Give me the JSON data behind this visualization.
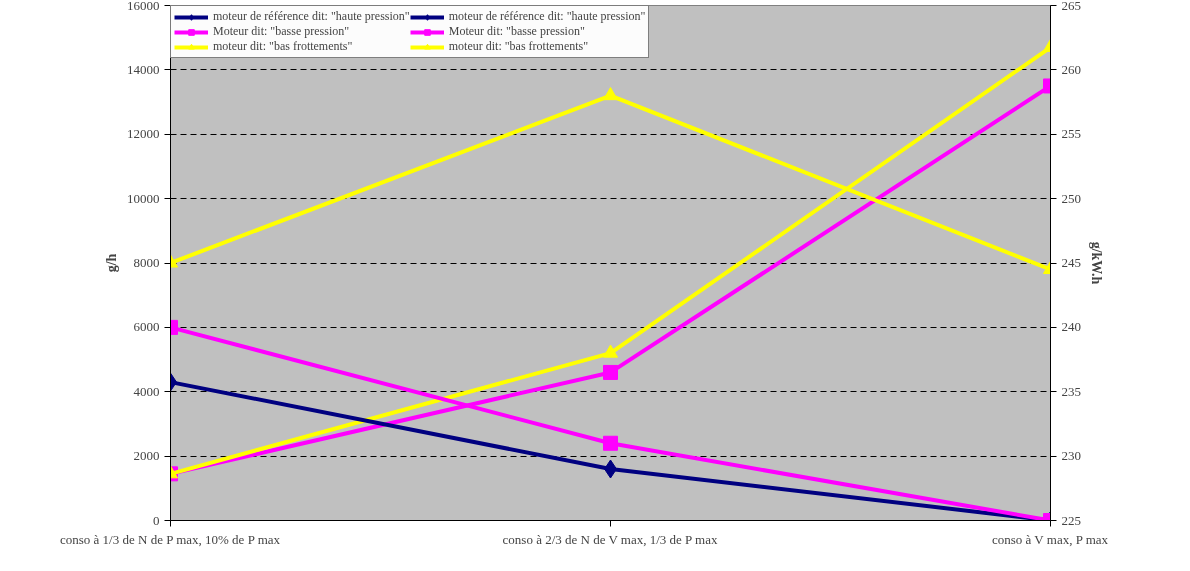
{
  "chart_data": {
    "type": "line",
    "categories": [
      "conso à 1/3 de N de P max, 10% de P max",
      "conso à 2/3 de N de V max, 1/3 de P max",
      "conso à V max, P max"
    ],
    "ylabel": "g/h",
    "y2label": "g/kW.h",
    "ylim": [
      0,
      16000
    ],
    "yticks": [
      0,
      2000,
      4000,
      6000,
      8000,
      10000,
      12000,
      14000,
      16000
    ],
    "y2lim": [
      225,
      265
    ],
    "y2ticks": [
      225,
      230,
      235,
      240,
      245,
      250,
      255,
      260,
      265
    ],
    "grid": "y",
    "legend": "top",
    "line_style": "solid",
    "series": [
      {
        "name": "moteur de référence dit: \"haute pression\"",
        "color": "#000080",
        "marker": "diamond",
        "values": [
          null,
          null,
          null
        ]
      },
      {
        "name": "Moteur dit: \"basse pression\"",
        "color": "#ff00ff",
        "marker": "square",
        "values": [
          1450,
          4600,
          13500
        ]
      },
      {
        "name": "moteur dit: \"bas frottements\"",
        "color": "#ffff00",
        "marker": "triangle",
        "values": [
          1450,
          5200,
          14700
        ]
      },
      {
        "name": "moteur de référence dit: \"haute pression\"",
        "color": "#000080",
        "marker": "diamond",
        "axis": "y2",
        "values": [
          235.75,
          229,
          225
        ]
      },
      {
        "name": "Moteur dit: \"basse pression\"",
        "color": "#ff00ff",
        "marker": "square",
        "axis": "y2",
        "values": [
          240,
          231,
          225
        ]
      },
      {
        "name": "moteur dit: \"bas frottements\"",
        "color": "#ffff00",
        "marker": "triangle",
        "axis": "y2",
        "values": [
          245,
          258,
          244.5
        ]
      }
    ]
  }
}
